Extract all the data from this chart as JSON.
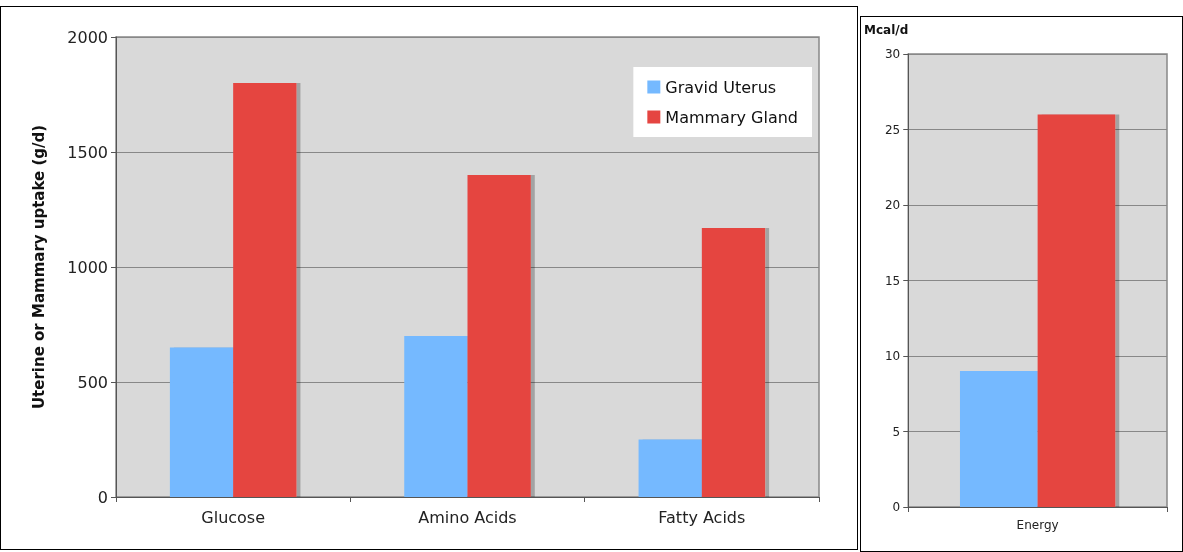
{
  "chart_data": [
    {
      "type": "bar",
      "ylabel": "Uterine or Mammary uptake (g/d)",
      "categories": [
        "Glucose",
        "Amino Acids",
        "Fatty Acids"
      ],
      "series": [
        {
          "name": "Gravid Uterus",
          "color": "#75b9ff",
          "values": [
            650,
            700,
            250
          ]
        },
        {
          "name": "Mammary Gland",
          "color": "#e54541",
          "values": [
            1800,
            1400,
            1170
          ]
        }
      ],
      "ylim": [
        0,
        2000
      ],
      "yticks": [
        0,
        500,
        1000,
        1500,
        2000
      ],
      "grid": "y",
      "legend": "top right"
    },
    {
      "type": "bar",
      "ylabel": "Mcal/d",
      "categories": [
        "Energy"
      ],
      "series": [
        {
          "color": "#75b9ff",
          "values": [
            9
          ]
        },
        {
          "color": "#e54541",
          "values": [
            26
          ]
        }
      ],
      "ylim": [
        0,
        30
      ],
      "yticks": [
        0,
        5,
        10,
        15,
        20,
        25,
        30
      ],
      "grid": "y",
      "legend": false
    }
  ]
}
